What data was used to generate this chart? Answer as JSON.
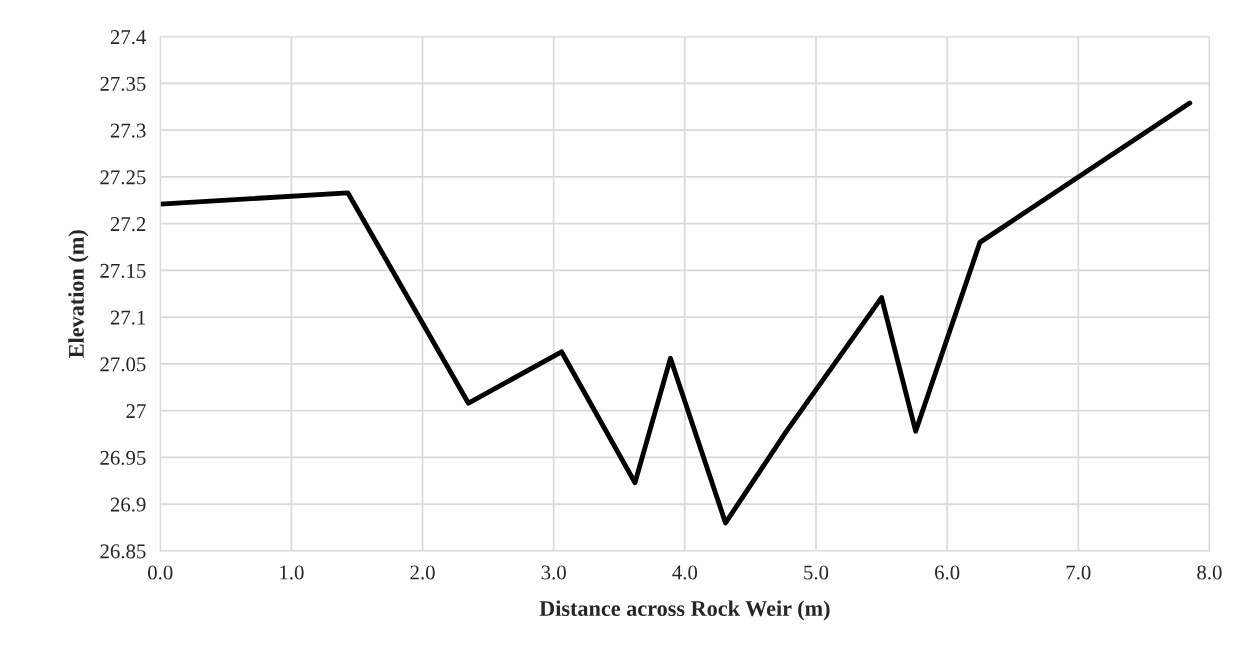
{
  "chart_data": {
    "type": "line",
    "xlabel": "Distance across Rock Weir (m)",
    "ylabel": "Elevation (m)",
    "x": [
      0.0,
      1.43,
      2.35,
      3.06,
      3.62,
      3.89,
      4.31,
      4.77,
      5.5,
      5.76,
      6.25,
      7.85
    ],
    "series": [
      {
        "color": "#000000",
        "values": [
          27.221,
          27.233,
          27.008,
          27.063,
          26.923,
          27.056,
          26.88,
          26.977,
          27.121,
          26.978,
          27.18,
          27.329
        ]
      }
    ],
    "xlim": [
      0,
      8
    ],
    "xticks": [
      {
        "value": 0,
        "label": "0.0"
      },
      {
        "value": 1,
        "label": "1.0"
      },
      {
        "value": 2,
        "label": "2.0"
      },
      {
        "value": 3,
        "label": "3.0"
      },
      {
        "value": 4,
        "label": "4.0"
      },
      {
        "value": 5,
        "label": "5.0"
      },
      {
        "value": 6,
        "label": "6.0"
      },
      {
        "value": 7,
        "label": "7.0"
      },
      {
        "value": 8,
        "label": "8.0"
      }
    ],
    "ylim": [
      26.85,
      27.4
    ],
    "yticks": [
      26.85,
      26.9,
      26.95,
      27,
      27.05,
      27.1,
      27.15,
      27.2,
      27.25,
      27.3,
      27.35,
      27.4
    ],
    "grid": true,
    "marker": "none",
    "line_style": "solid"
  }
}
